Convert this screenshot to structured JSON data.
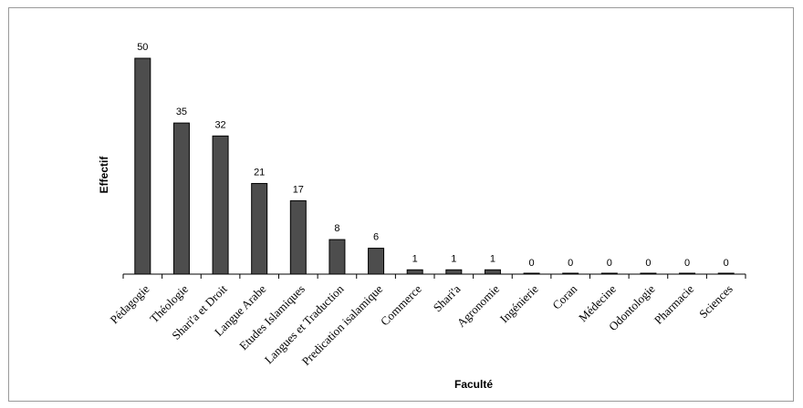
{
  "chart_data": {
    "type": "bar",
    "title": "",
    "xlabel": "Faculté",
    "ylabel": "Effectif",
    "categories": [
      "Pédagogie",
      "Théologie",
      "Shari'a et Droit",
      "Langue Arabe",
      "Etudes Islamiques",
      "Langues et Traduction",
      "Predication isalamique",
      "Commerce",
      "Shari'a",
      "Agronomie",
      "Ingénierie",
      "Coran",
      "Médecine",
      "Odontologie",
      "Pharmacie",
      "Sciences"
    ],
    "values": [
      50,
      35,
      32,
      21,
      17,
      8,
      6,
      1,
      1,
      1,
      0,
      0,
      0,
      0,
      0,
      0
    ],
    "ylim": [
      0,
      50
    ],
    "grid": false,
    "bar_color": "#4d4d4d",
    "bar_stroke": "#000000"
  }
}
